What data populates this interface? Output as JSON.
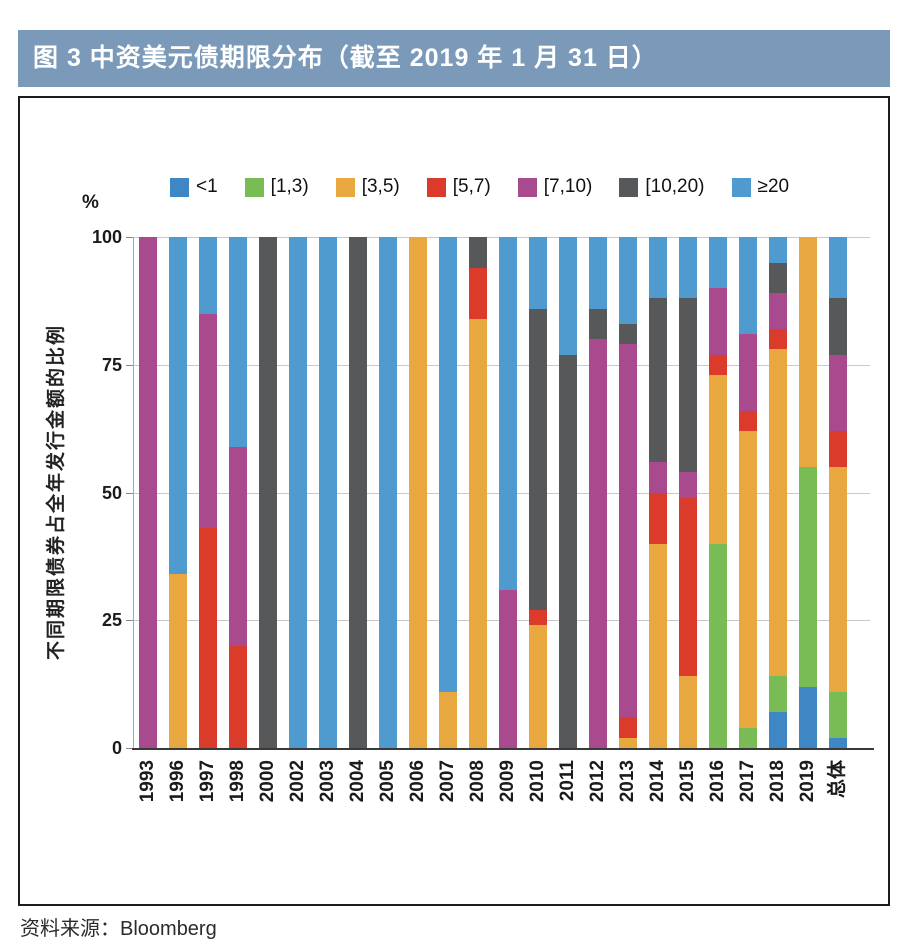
{
  "window": {
    "title": "图 3  中资美元债期限分布（截至 2019 年 1 月 31 日）",
    "title_bar_color": "#7B9AB9"
  },
  "source_note": "资料来源：Bloomberg",
  "y_axis": {
    "title": "不同期限债券占全年发行金额的比例",
    "unit": "%"
  },
  "chart_data": {
    "type": "bar",
    "stacked": true,
    "percent_stacked": true,
    "grid": true,
    "legend_position": "top",
    "ylim": [
      0,
      100
    ],
    "yticks": [
      0,
      25,
      50,
      75,
      100
    ],
    "ylabel": "不同期限债券占全年发行金额的比例",
    "unit": "%",
    "categories": [
      "1993",
      "1996",
      "1997",
      "1998",
      "2000",
      "2002",
      "2003",
      "2004",
      "2005",
      "2006",
      "2007",
      "2008",
      "2009",
      "2010",
      "2011",
      "2012",
      "2013",
      "2014",
      "2015",
      "2016",
      "2017",
      "2018",
      "2019",
      "总体"
    ],
    "series": [
      {
        "name": "<1",
        "color": "#3F86C4",
        "values": [
          0,
          0,
          0,
          0,
          0,
          0,
          0,
          0,
          0,
          0,
          0,
          0,
          0,
          0,
          0,
          0,
          0,
          0,
          0,
          0,
          0,
          7,
          12,
          2
        ]
      },
      {
        "name": "[1,3)",
        "color": "#79BB55",
        "values": [
          0,
          0,
          0,
          0,
          0,
          0,
          0,
          0,
          0,
          0,
          0,
          0,
          0,
          0,
          0,
          0,
          0,
          0,
          0,
          40,
          4,
          7,
          43,
          9
        ]
      },
      {
        "name": "[3,5)",
        "color": "#E9A83F",
        "values": [
          0,
          34,
          0,
          0,
          0,
          0,
          0,
          0,
          0,
          100,
          11,
          84,
          0,
          24,
          0,
          0,
          2,
          40,
          14,
          33,
          58,
          64,
          45,
          44
        ]
      },
      {
        "name": "[5,7)",
        "color": "#DB3B2B",
        "values": [
          0,
          0,
          43,
          20,
          0,
          0,
          0,
          0,
          0,
          0,
          0,
          10,
          0,
          3,
          0,
          0,
          4,
          10,
          35,
          4,
          4,
          4,
          0,
          7
        ]
      },
      {
        "name": "[7,10)",
        "color": "#A84A8D",
        "values": [
          100,
          0,
          42,
          39,
          0,
          0,
          0,
          0,
          0,
          0,
          0,
          0,
          31,
          0,
          0,
          80,
          73,
          6,
          5,
          13,
          15,
          7,
          0,
          15
        ]
      },
      {
        "name": "[10,20)",
        "color": "#57585A",
        "values": [
          0,
          0,
          0,
          0,
          100,
          0,
          0,
          100,
          0,
          0,
          0,
          6,
          0,
          59,
          77,
          6,
          4,
          32,
          34,
          0,
          0,
          6,
          0,
          11
        ]
      },
      {
        "name": "≥20",
        "color": "#4F9ACF",
        "values": [
          0,
          66,
          15,
          41,
          0,
          100,
          100,
          0,
          100,
          0,
          89,
          0,
          69,
          14,
          23,
          14,
          17,
          12,
          12,
          10,
          19,
          5,
          0,
          12
        ]
      }
    ]
  }
}
